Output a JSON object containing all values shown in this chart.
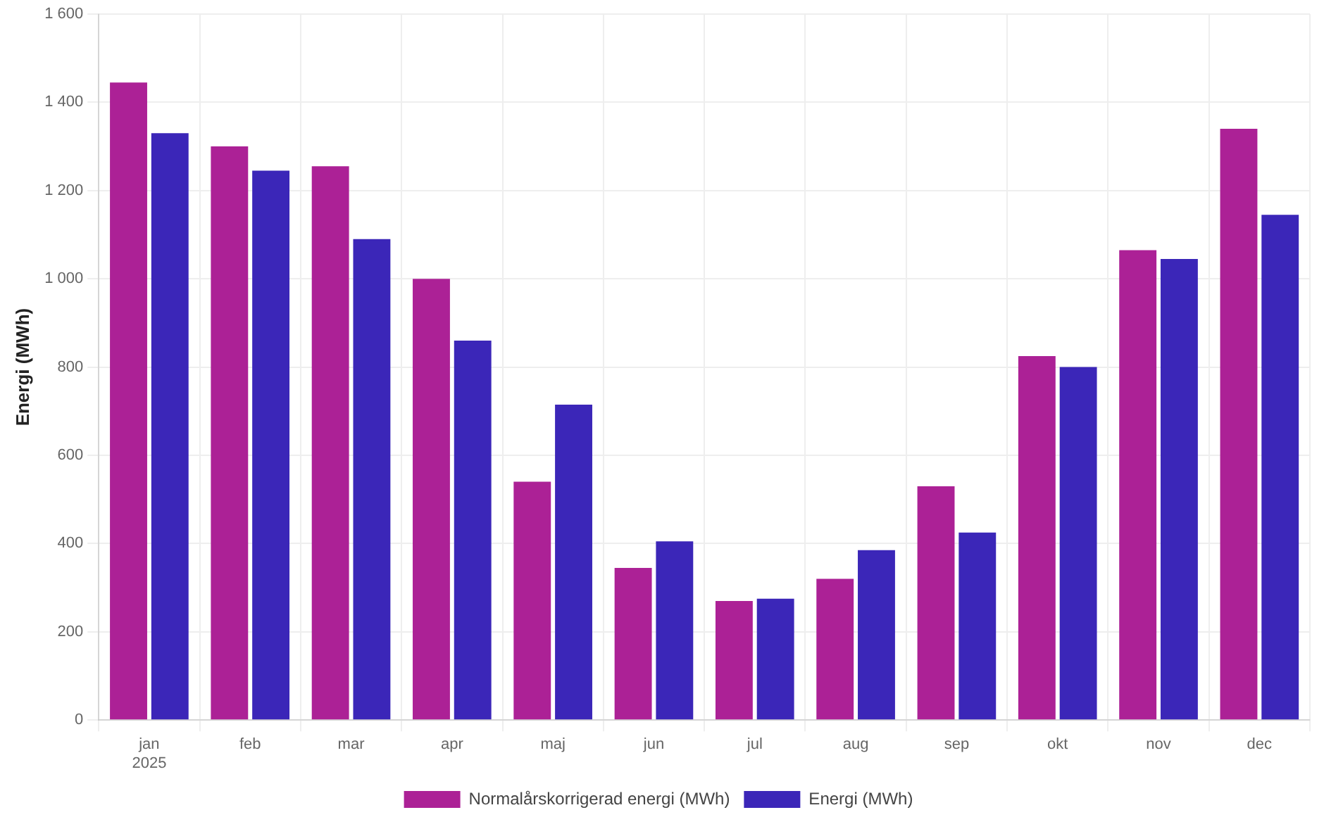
{
  "chart_data": {
    "type": "bar",
    "ylabel": "Energi (MWh)",
    "categories": [
      "jan\n2025",
      "feb",
      "mar",
      "apr",
      "maj",
      "jun",
      "jul",
      "aug",
      "sep",
      "okt",
      "nov",
      "dec"
    ],
    "series": [
      {
        "name": "Normalårskorrigerad energi (MWh)",
        "color": "#ac2196",
        "values": [
          1445,
          1300,
          1255,
          1000,
          540,
          345,
          270,
          320,
          530,
          825,
          1065,
          1340
        ]
      },
      {
        "name": "Energi (MWh)",
        "color": "#3b26b8",
        "values": [
          1330,
          1245,
          1090,
          860,
          715,
          405,
          275,
          385,
          425,
          800,
          1045,
          1145
        ]
      }
    ],
    "ylim": [
      0,
      1600
    ],
    "yticks": [
      0,
      200,
      400,
      600,
      800,
      {
        "value": 1000,
        "label": "1 000"
      },
      {
        "value": 1200,
        "label": "1 200"
      },
      {
        "value": 1400,
        "label": "1 400"
      },
      {
        "value": 1600,
        "label": "1 600"
      }
    ],
    "grid": true,
    "legend": "bottom"
  }
}
